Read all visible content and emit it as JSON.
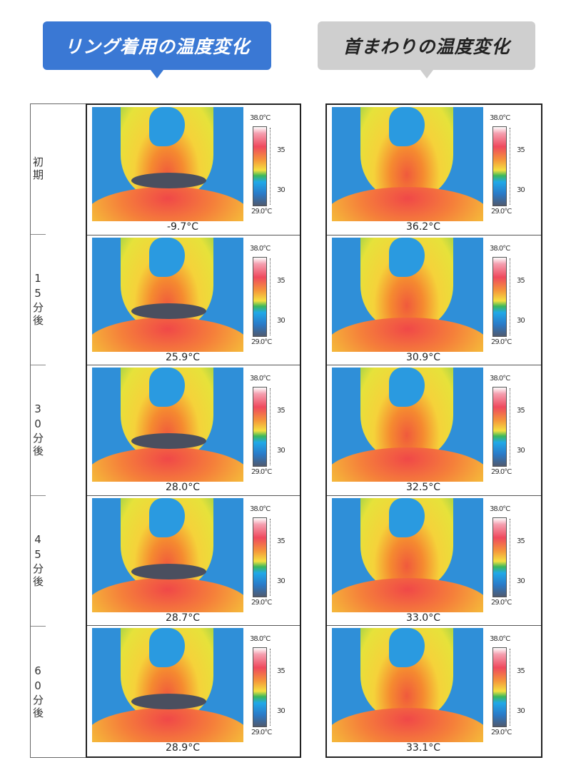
{
  "headers": {
    "ring": "リング着用の温度変化",
    "neck": "首まわりの温度変化"
  },
  "colors": {
    "ring_header": "#3a78d4",
    "neck_header": "#cfcfcf"
  },
  "rows": [
    {
      "label": "初期",
      "ring_temp": "-9.7°C",
      "neck_temp": "36.2°C"
    },
    {
      "label": "15分後",
      "ring_temp": "25.9°C",
      "neck_temp": "30.9°C"
    },
    {
      "label": "30分後",
      "ring_temp": "28.0°C",
      "neck_temp": "32.5°C"
    },
    {
      "label": "45分後",
      "ring_temp": "28.7°C",
      "neck_temp": "33.0°C"
    },
    {
      "label": "60分後",
      "ring_temp": "28.9°C",
      "neck_temp": "33.1°C"
    }
  ],
  "scale": {
    "max": "38.0°C",
    "min": "29.0°C",
    "tick35": "35",
    "tick30": "30"
  }
}
